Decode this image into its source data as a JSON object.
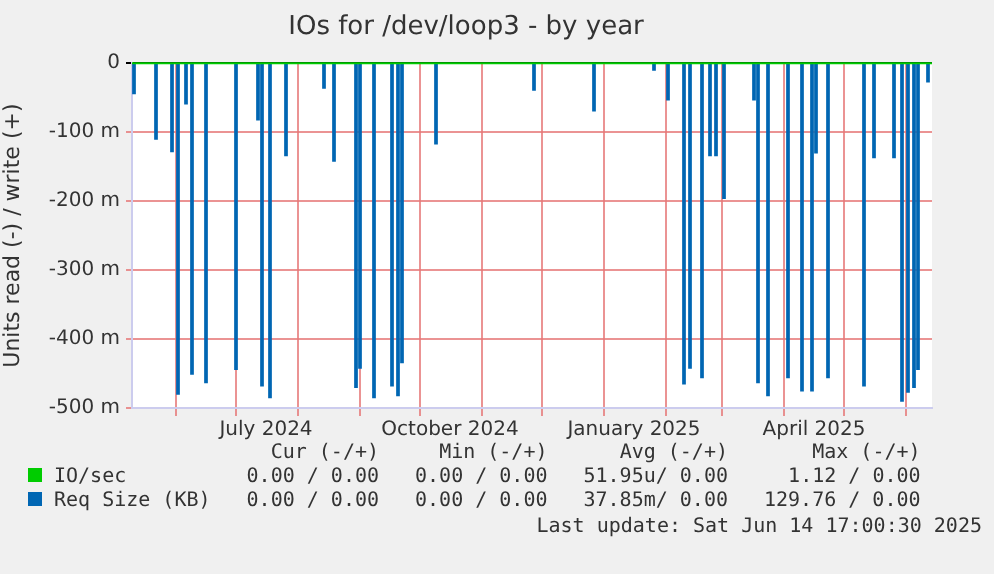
{
  "chart_data": {
    "type": "bar",
    "title": "IOs for /dev/loop3 - by year",
    "ylabel": "Units read (-) / write (+)",
    "xlim": [
      "2024-05-10",
      "2025-06-14"
    ],
    "xticks": [
      {
        "value": "2024-06-01",
        "label": null
      },
      {
        "value": "2024-07-01",
        "label": null
      },
      {
        "value": "2024-07-16",
        "label": "July 2024"
      },
      {
        "value": "2024-08-01",
        "label": null
      },
      {
        "value": "2024-09-01",
        "label": null
      },
      {
        "value": "2024-10-01",
        "label": null
      },
      {
        "value": "2024-10-16",
        "label": "October 2024"
      },
      {
        "value": "2024-11-01",
        "label": null
      },
      {
        "value": "2024-12-01",
        "label": null
      },
      {
        "value": "2025-01-01",
        "label": null
      },
      {
        "value": "2025-01-16",
        "label": "January 2025"
      },
      {
        "value": "2025-02-01",
        "label": null
      },
      {
        "value": "2025-03-01",
        "label": null
      },
      {
        "value": "2025-04-01",
        "label": null
      },
      {
        "value": "2025-04-16",
        "label": "April 2025"
      },
      {
        "value": "2025-05-01",
        "label": null
      },
      {
        "value": "2025-06-01",
        "label": null
      }
    ],
    "ylim": [
      -500,
      0
    ],
    "yticks": [
      {
        "value": -500,
        "label": "-500 m"
      },
      {
        "value": -400,
        "label": "-400 m"
      },
      {
        "value": -300,
        "label": "-300 m"
      },
      {
        "value": -200,
        "label": "-200 m"
      },
      {
        "value": -100,
        "label": "-100 m"
      },
      0
    ],
    "grid": true,
    "legend": "bottom",
    "series": [
      {
        "name": "IO/sec",
        "color": "#00cc00",
        "type": "line",
        "x": [
          "2024-05-10",
          "2025-06-14"
        ],
        "values": [
          0,
          0
        ]
      },
      {
        "name": "Req Size (KB)",
        "color": "#0066b3",
        "x": [
          "2024-05-11",
          "2024-05-22",
          "2024-05-30",
          "2024-06-02",
          "2024-06-06",
          "2024-06-09",
          "2024-06-16",
          "2024-07-01",
          "2024-07-12",
          "2024-07-14",
          "2024-07-18",
          "2024-07-26",
          "2024-08-14",
          "2024-08-19",
          "2024-08-30",
          "2024-09-01",
          "2024-09-08",
          "2024-09-17",
          "2024-09-20",
          "2024-09-22",
          "2024-10-09",
          "2024-11-27",
          "2024-12-27",
          "2025-01-26",
          "2025-02-02",
          "2025-02-10",
          "2025-02-13",
          "2025-02-19",
          "2025-02-23",
          "2025-02-26",
          "2025-03-02",
          "2025-03-17",
          "2025-03-19",
          "2025-03-24",
          "2025-04-03",
          "2025-04-10",
          "2025-04-15",
          "2025-04-17",
          "2025-04-23",
          "2025-05-11",
          "2025-05-16",
          "2025-05-26",
          "2025-05-30",
          "2025-06-02",
          "2025-06-05",
          "2025-06-07",
          "2025-06-12"
        ],
        "values": [
          -44,
          -110,
          -128,
          -480,
          -59,
          -451,
          -463,
          -444,
          -82,
          -468,
          -485,
          -134,
          -36,
          -142,
          -470,
          -442,
          -485,
          -468,
          -482,
          -434,
          -117,
          -39,
          -69,
          -10,
          -53,
          -465,
          -442,
          -456,
          -134,
          -134,
          -196,
          -53,
          -463,
          -482,
          -456,
          -475,
          -475,
          -130,
          -456,
          -468,
          -137,
          -137,
          -490,
          -477,
          -470,
          -444,
          -27
        ]
      }
    ],
    "annotations": [
      "Cur (-/+)",
      "Min (-/+)",
      "Avg (-/+)",
      "Max (-/+)",
      "0.00 / 0.00",
      "0.00 / 0.00",
      "51.95u/ 0.00",
      "1.12 / 0.00",
      "0.00 / 0.00",
      "0.00 / 0.00",
      "37.85m/ 0.00",
      "129.76 / 0.00",
      "Last update: Sat Jun 14 17:00:30 2025"
    ]
  }
}
